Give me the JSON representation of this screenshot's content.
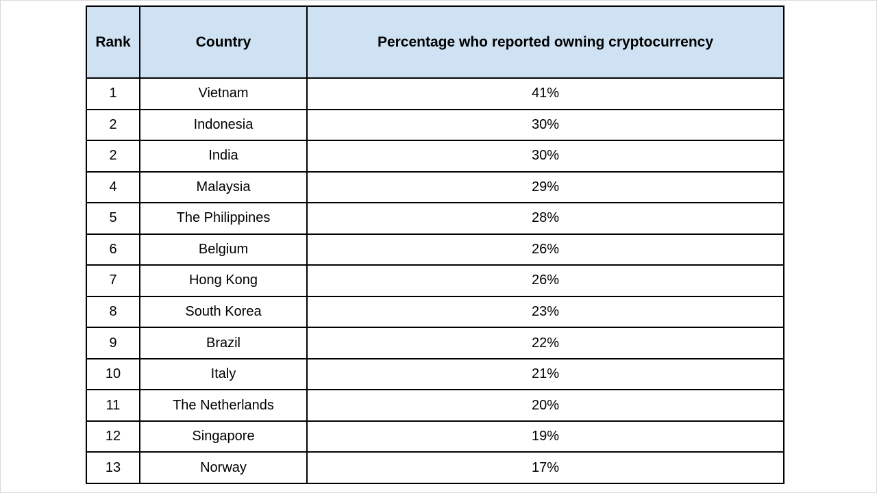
{
  "table": {
    "columns": [
      "Rank",
      "Country",
      "Percentage who reported owning cryptocurrency"
    ],
    "rows": [
      [
        "1",
        "Vietnam",
        "41%"
      ],
      [
        "2",
        "Indonesia",
        "30%"
      ],
      [
        "2",
        "India",
        "30%"
      ],
      [
        "4",
        "Malaysia",
        "29%"
      ],
      [
        "5",
        "The Philippines",
        "28%"
      ],
      [
        "6",
        "Belgium",
        "26%"
      ],
      [
        "7",
        "Hong Kong",
        "26%"
      ],
      [
        "8",
        "South Korea",
        "23%"
      ],
      [
        "9",
        "Brazil",
        "22%"
      ],
      [
        "10",
        "Italy",
        "21%"
      ],
      [
        "11",
        "The Netherlands",
        "20%"
      ],
      [
        "12",
        "Singapore",
        "19%"
      ],
      [
        "13",
        "Norway",
        "17%"
      ]
    ],
    "header_bg": "#cfe2f3",
    "border_color": "#000000",
    "text_color": "#000000"
  },
  "chart_data": {
    "type": "table",
    "title": "Percentage who reported owning cryptocurrency",
    "columns": [
      "Rank",
      "Country",
      "Percentage who reported owning cryptocurrency"
    ],
    "ranks": [
      1,
      2,
      2,
      4,
      5,
      6,
      7,
      8,
      9,
      10,
      11,
      12,
      13
    ],
    "categories": [
      "Vietnam",
      "Indonesia",
      "India",
      "Malaysia",
      "The Philippines",
      "Belgium",
      "Hong Kong",
      "South Korea",
      "Brazil",
      "Italy",
      "The Netherlands",
      "Singapore",
      "Norway"
    ],
    "values": [
      41,
      30,
      30,
      29,
      28,
      26,
      26,
      23,
      22,
      21,
      20,
      19,
      17
    ],
    "unit": "%"
  }
}
